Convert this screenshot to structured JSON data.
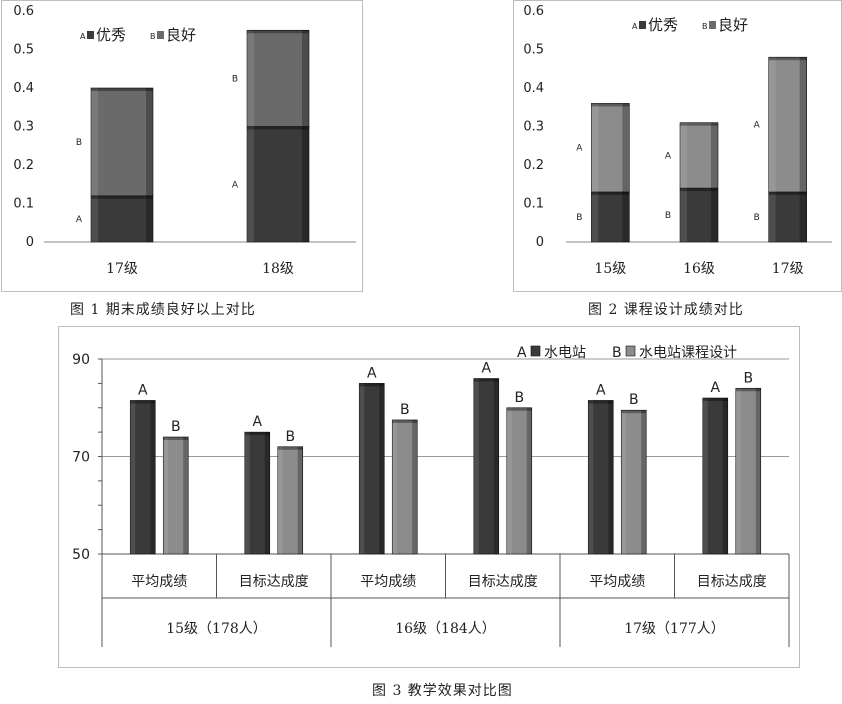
{
  "captions": {
    "fig1": "图 1  期末成绩良好以上对比",
    "fig2": "图 2  课程设计成绩对比",
    "fig3": "图 3  教学效果对比图"
  },
  "colors": {
    "dark": "#3a3a3a",
    "medium": "#6a6a6a",
    "light": "#8c8c8c",
    "grid": "#d0d0d0"
  },
  "chart_data": [
    {
      "type": "bar",
      "stacked": true,
      "categories": [
        "17级",
        "18级"
      ],
      "series": [
        {
          "name": "优秀",
          "letter": "A",
          "values": [
            0.12,
            0.3
          ]
        },
        {
          "name": "良好",
          "letter": "B",
          "values": [
            0.28,
            0.25
          ]
        }
      ],
      "ylim": [
        0,
        0.6
      ],
      "yticks": [
        "0",
        "0.1",
        "0.2",
        "0.3",
        "0.4",
        "0.5",
        "0.6"
      ],
      "legend": "top-left",
      "grid": false
    },
    {
      "type": "bar",
      "stacked": true,
      "categories": [
        "15级",
        "16级",
        "17级"
      ],
      "series": [
        {
          "name": "优秀",
          "letter": "B",
          "values": [
            0.13,
            0.14,
            0.13
          ]
        },
        {
          "name": "良好",
          "letter": "A",
          "values": [
            0.23,
            0.17,
            0.35
          ]
        }
      ],
      "legend_letters": [
        "A",
        "B"
      ],
      "ylim": [
        0,
        0.6
      ],
      "yticks": [
        "0",
        "0.1",
        "0.2",
        "0.3",
        "0.4",
        "0.5",
        "0.6"
      ],
      "legend": "top",
      "grid": false
    },
    {
      "type": "bar",
      "categories": [
        "平均成绩",
        "目标达成度",
        "平均成绩",
        "目标达成度",
        "平均成绩",
        "目标达成度"
      ],
      "groups": [
        "15级（178人）",
        "16级（184人）",
        "17级（177人）"
      ],
      "series": [
        {
          "name": "水电站",
          "letter": "A",
          "values": [
            81.5,
            75,
            85,
            86,
            81.5,
            82
          ]
        },
        {
          "name": "水电站课程设计",
          "letter": "B",
          "values": [
            74,
            72,
            77.5,
            80,
            79.5,
            84
          ]
        }
      ],
      "ylim": [
        50,
        90
      ],
      "yticks": [
        "50",
        "70",
        "90"
      ],
      "legend": "top-right",
      "grid": true
    }
  ]
}
